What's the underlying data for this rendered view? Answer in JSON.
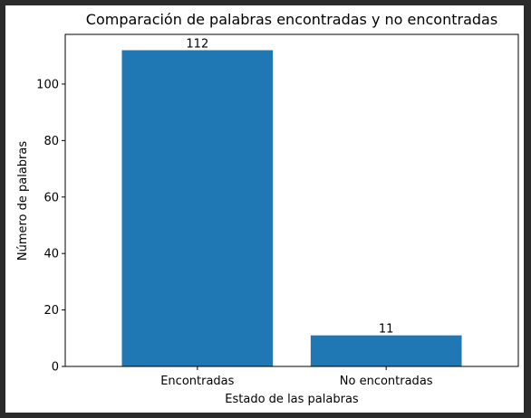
{
  "chart_data": {
    "type": "bar",
    "title": "Comparación de palabras encontradas y no encontradas",
    "xlabel": "Estado de las palabras",
    "ylabel": "Número de palabras",
    "categories": [
      "Encontradas",
      "No encontradas"
    ],
    "values": [
      112,
      11
    ],
    "data_labels": [
      "112",
      "11"
    ],
    "ylim": [
      0,
      117.6
    ],
    "yticks": [
      0,
      20,
      40,
      60,
      80,
      100
    ],
    "grid": false,
    "legend": "none",
    "bar_color": "#1f77b4"
  },
  "colors": {
    "background": "#2b2b2b",
    "panel": "#ffffff"
  }
}
